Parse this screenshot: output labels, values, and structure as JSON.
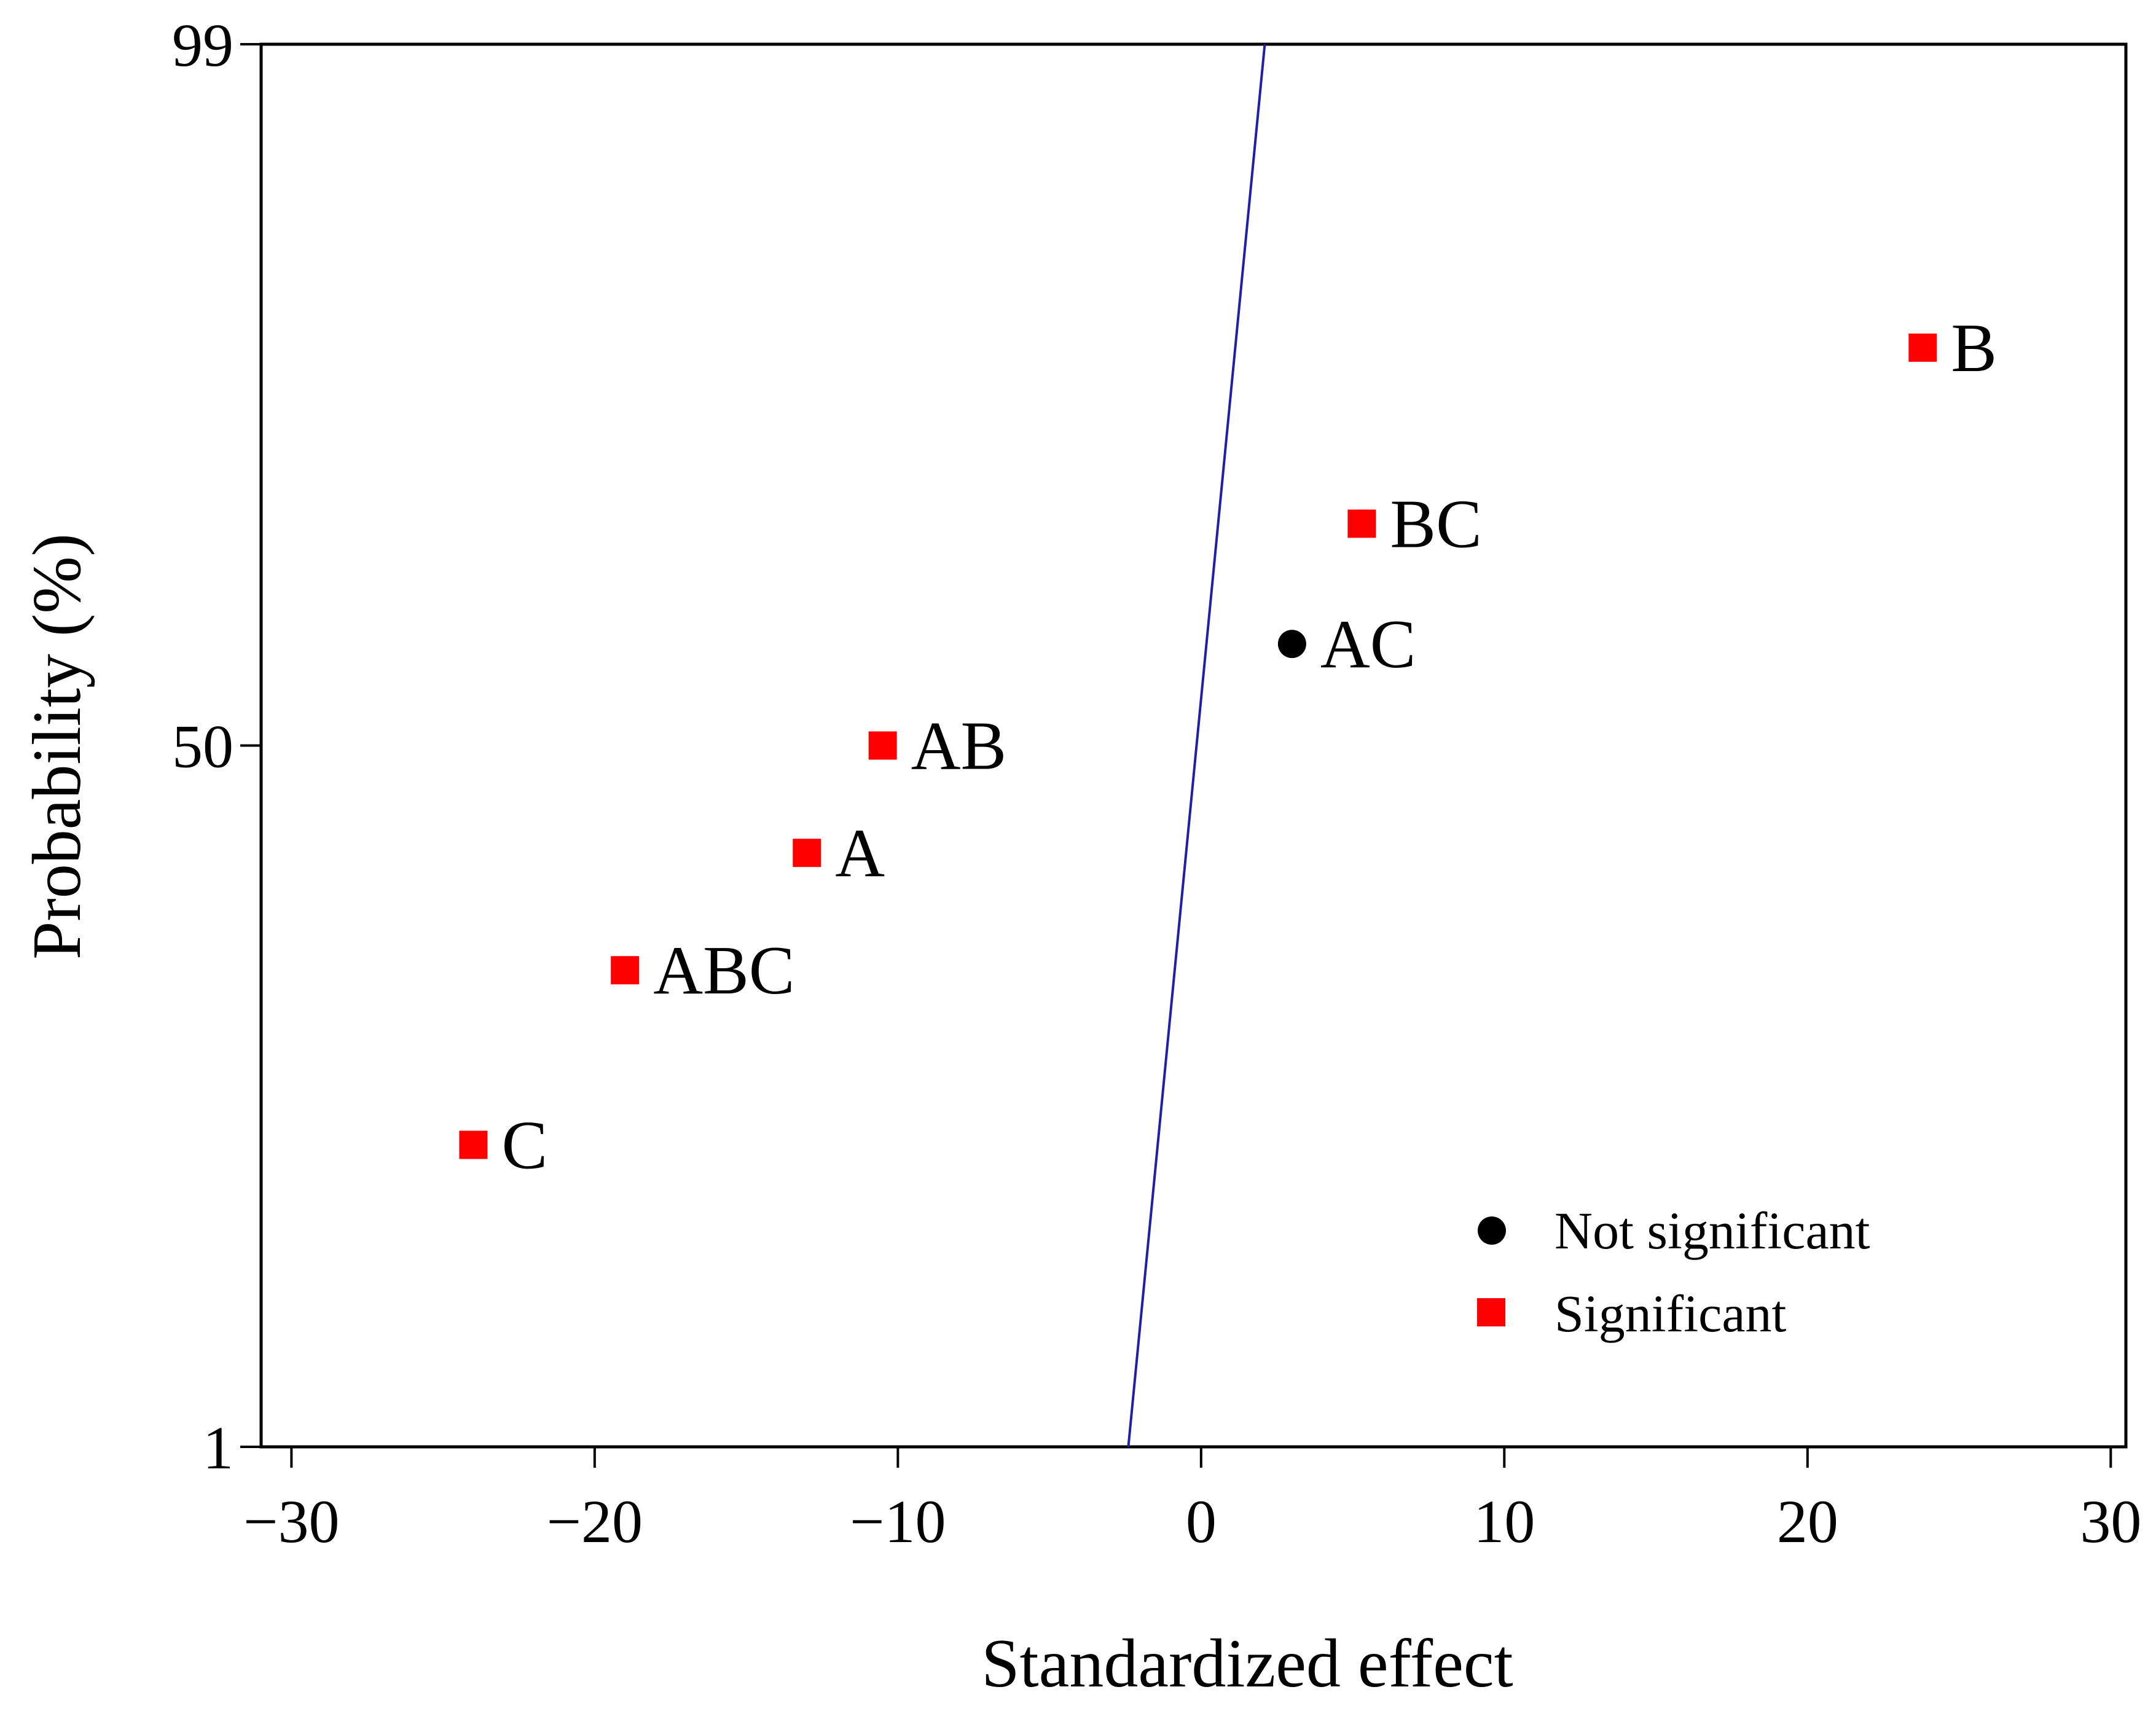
{
  "chart_data": {
    "type": "scatter",
    "title": "",
    "xlabel": "Standardized effect",
    "ylabel": "Probability (%)",
    "xlim": [
      -31,
      30.5
    ],
    "ylim": [
      1,
      99
    ],
    "x_ticks": [
      {
        "value": -30,
        "label": "−30"
      },
      {
        "value": -20,
        "label": "−20"
      },
      {
        "value": -10,
        "label": "−10"
      },
      {
        "value": 0,
        "label": "0"
      },
      {
        "value": 10,
        "label": "10"
      },
      {
        "value": 20,
        "label": "20"
      },
      {
        "value": 30,
        "label": "30"
      }
    ],
    "y_ticks": [
      {
        "value": 1,
        "label": "1"
      },
      {
        "value": 50,
        "label": "50"
      },
      {
        "value": 99,
        "label": "99"
      }
    ],
    "grid": false,
    "legend_position": "bottom-right",
    "series": [
      {
        "name": "Not significant",
        "marker": "circle",
        "color": "#000000",
        "points": [
          {
            "label": "AC",
            "x": 3.0,
            "y": 57.1
          }
        ]
      },
      {
        "name": "Significant",
        "marker": "square",
        "color": "#ff0000",
        "points": [
          {
            "label": "B",
            "x": 23.8,
            "y": 77.8
          },
          {
            "label": "BC",
            "x": 5.3,
            "y": 65.5
          },
          {
            "label": "AB",
            "x": -10.5,
            "y": 50.0
          },
          {
            "label": "A",
            "x": -13.0,
            "y": 42.5
          },
          {
            "label": "ABC",
            "x": -19.0,
            "y": 34.3
          },
          {
            "label": "C",
            "x": -24.0,
            "y": 22.1
          }
        ]
      }
    ],
    "reference_line": {
      "color": "#1f1fa8",
      "points": [
        {
          "x": -2.4,
          "y": 1
        },
        {
          "x": 2.1,
          "y": 99
        }
      ]
    }
  }
}
